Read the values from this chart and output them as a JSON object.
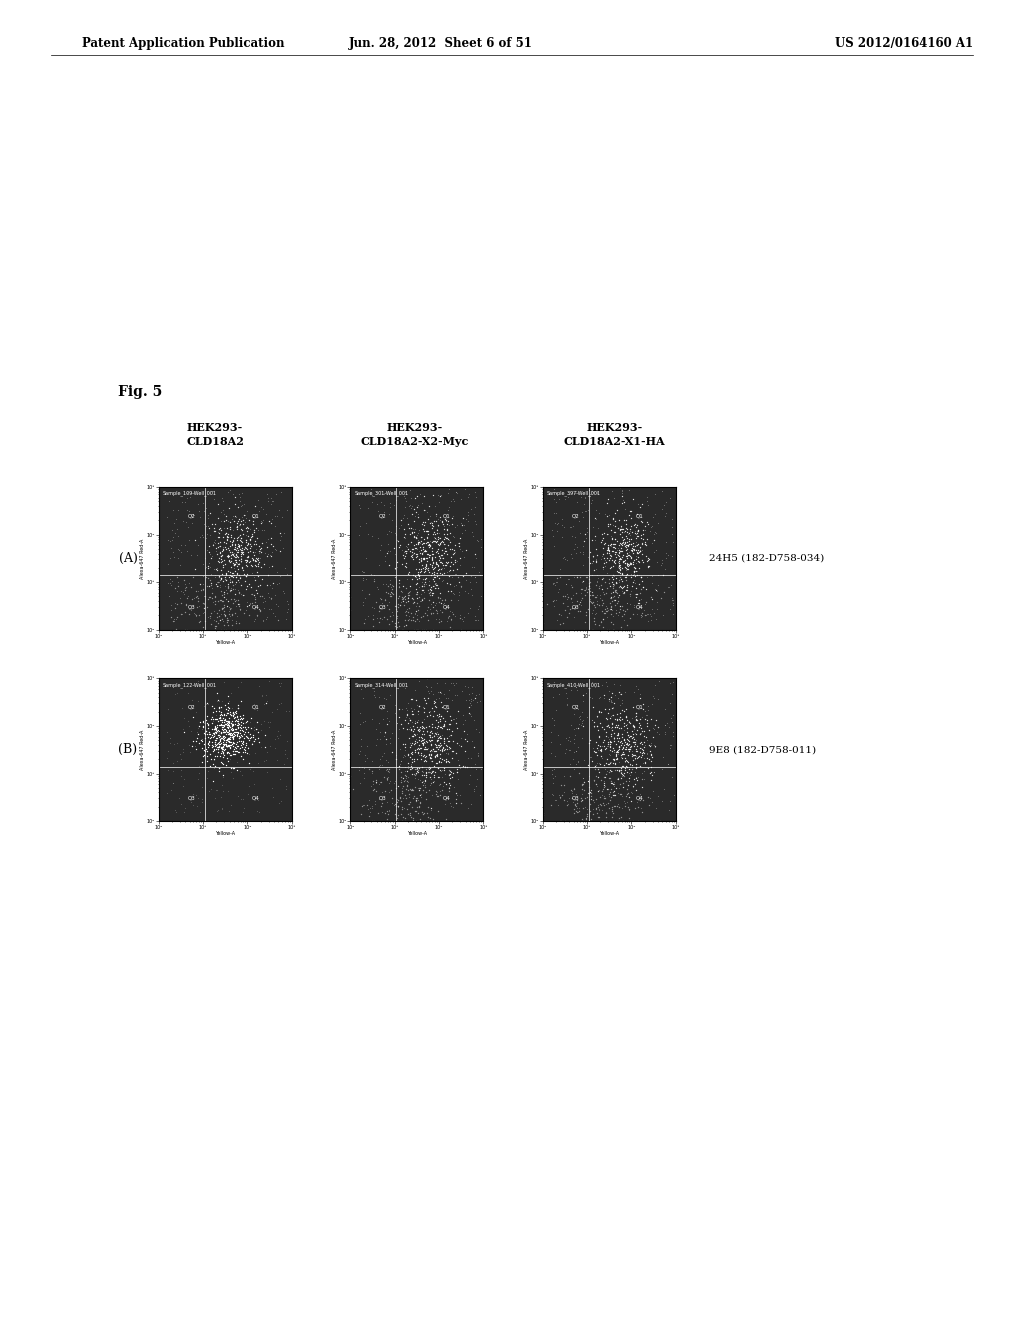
{
  "header_left": "Patent Application Publication",
  "header_center": "Jun. 28, 2012  Sheet 6 of 51",
  "header_right": "US 2012/0164160 A1",
  "fig_label": "Fig. 5",
  "col_titles": [
    "HEK293-\nCLD18A2",
    "HEK293-\nCLD18A2-X2-Myc",
    "HEK293-\nCLD18A2-X1-HA"
  ],
  "row_labels": [
    "(A)",
    "(B)"
  ],
  "row_annotations": [
    "24H5 (182-D758-034)",
    "9E8 (182-D758-011)"
  ],
  "plot_titles": [
    [
      "Sample_109-Well_001",
      "Sample_301-Well_001",
      "Sample_397-Well_001"
    ],
    [
      "Sample_122-Well_001",
      "Sample_314-Well_001",
      "Sample_410-Well_001"
    ]
  ],
  "ylabel": "Alexa-647 Red-A",
  "xlabel": "Yellow-A",
  "background_color": "#ffffff",
  "plot_bg_color": "#2a2a2a",
  "scatter_color_bright": "#ffffff",
  "scatter_color_dim": "#aaaaaa",
  "crosshair_color": "#ffffff",
  "border_color": "#000000",
  "page_width": 10.24,
  "page_height": 13.2
}
